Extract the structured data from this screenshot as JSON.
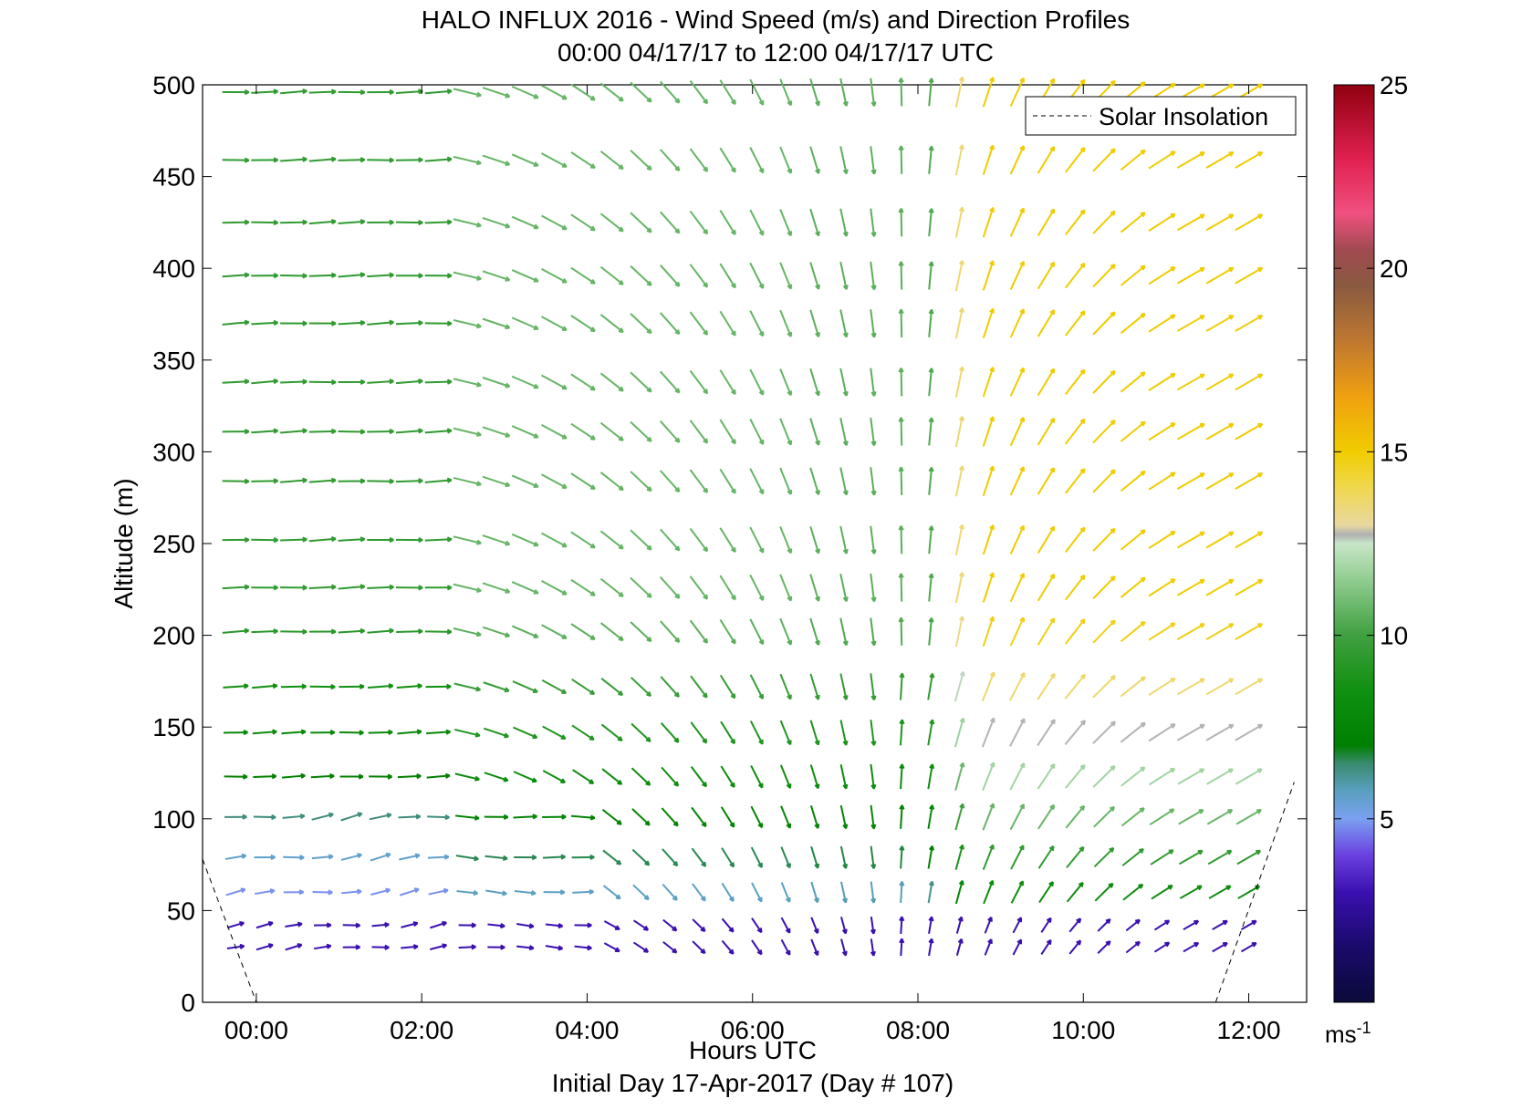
{
  "chart_data": {
    "type": "quiver",
    "title": "HALO INFLUX 2016 - Wind Speed (m/s) and Direction Profiles",
    "subtitle": "00:00 04/17/17 to 12:00 04/17/17  UTC",
    "xlabel": "Hours UTC",
    "ylabel": "Altitude (m)",
    "footer": "Initial Day 17-Apr-2017 (Day # 107)",
    "x_ticks": [
      "00:00",
      "02:00",
      "04:00",
      "06:00",
      "08:00",
      "10:00",
      "12:00"
    ],
    "y_ticks": [
      "0",
      "50",
      "100",
      "150",
      "200",
      "250",
      "300",
      "350",
      "400",
      "450",
      "500"
    ],
    "xlim_hours": [
      -0.65,
      12.7
    ],
    "ylim": [
      0,
      500
    ],
    "colorbar": {
      "ticks": [
        "5",
        "10",
        "15",
        "20",
        "25"
      ],
      "range": [
        0,
        25
      ],
      "units": "ms",
      "units_exp": "-1"
    },
    "legend": {
      "entries": [
        "Solar Insolation"
      ],
      "placement": "top-right"
    },
    "solar_insolation": {
      "left": [
        [
          -0.65,
          78
        ],
        [
          0.0,
          0
        ]
      ],
      "right": [
        [
          11.6,
          0
        ],
        [
          12.55,
          120
        ]
      ]
    },
    "altitudes_m": [
      30,
      42,
      60,
      79,
      101,
      123,
      147,
      172,
      202,
      226,
      252,
      284,
      311,
      338,
      370,
      396,
      425,
      459,
      496
    ],
    "times_hours": [
      -0.25,
      0.1,
      0.45,
      0.8,
      1.15,
      1.5,
      1.85,
      2.2,
      2.55,
      2.9,
      3.25,
      3.6,
      3.95,
      4.3,
      4.65,
      5.0,
      5.35,
      5.7,
      6.05,
      6.4,
      6.75,
      7.1,
      7.45,
      7.8,
      8.15,
      8.5,
      8.85,
      9.2,
      9.55,
      9.9,
      10.25,
      10.6,
      10.95,
      11.3,
      11.65,
      12.0
    ],
    "wind_description": "Westerly winds at night rotating through northerly to southwesterly after 08:00; speeds ~2-4 m/s near surface, 9-11 m/s aloft before 04:00, 12-15 m/s aloft after 08:00"
  }
}
